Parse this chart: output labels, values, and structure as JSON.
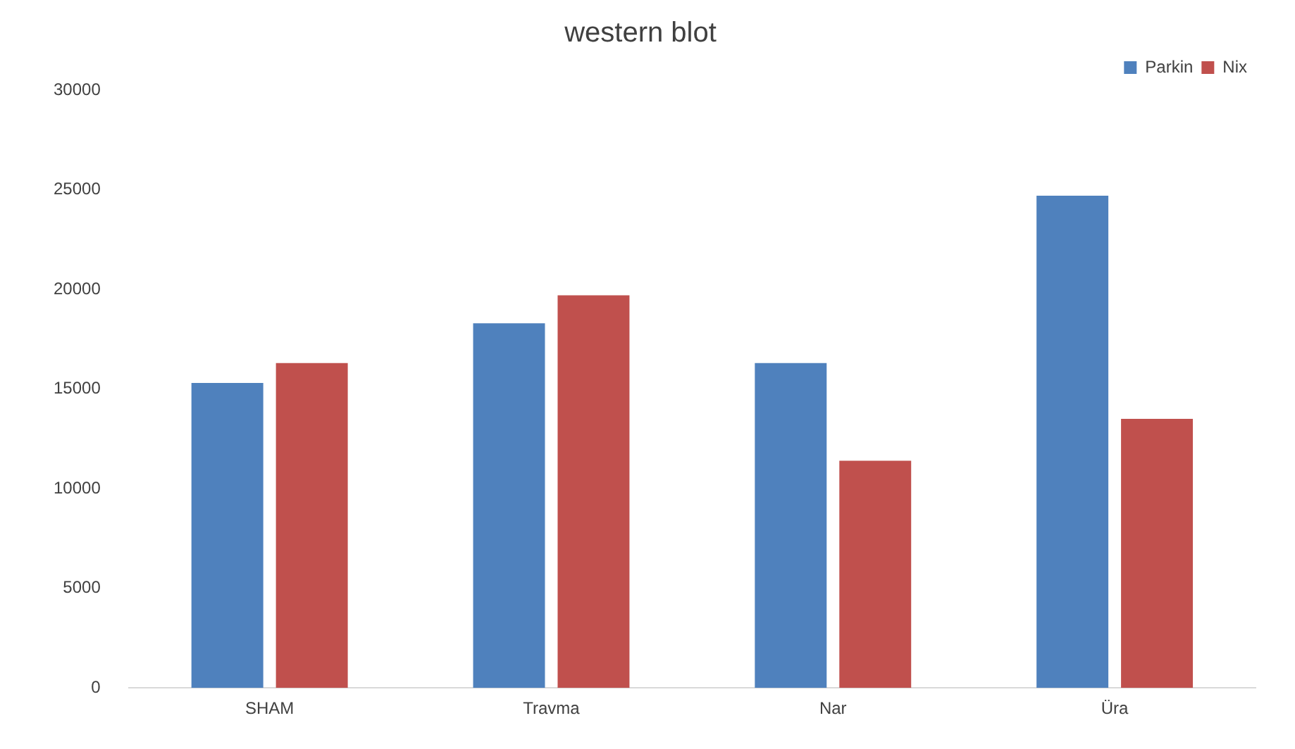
{
  "chart_data": {
    "type": "bar",
    "title": "western blot",
    "categories": [
      "SHAM",
      "Travma",
      "Nar",
      "Üra"
    ],
    "series": [
      {
        "name": "Parkin",
        "color": "#4f81bd",
        "values": [
          15300,
          18300,
          16300,
          24700
        ]
      },
      {
        "name": "Nix",
        "color": "#c0504d",
        "values": [
          16300,
          19700,
          11400,
          13500
        ]
      }
    ],
    "ylim": [
      0,
      30000
    ],
    "yticks": [
      0,
      5000,
      10000,
      15000,
      20000,
      25000,
      30000
    ],
    "grid": false,
    "legend": "top right"
  }
}
